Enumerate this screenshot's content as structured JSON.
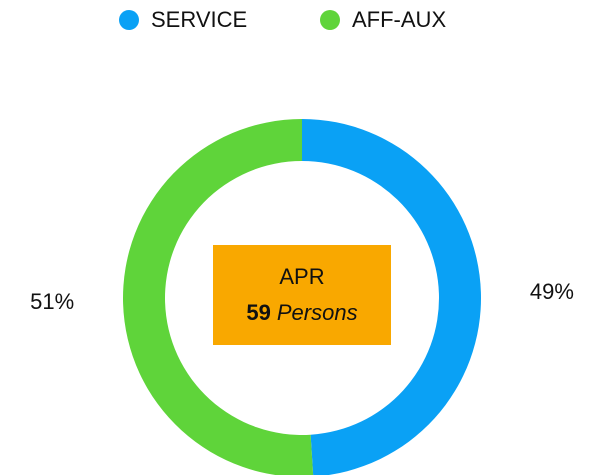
{
  "chart_data": {
    "type": "donut",
    "categories": [
      "SERVICE",
      "AFF-AUX"
    ],
    "values": [
      49,
      51
    ],
    "value_labels": [
      "49%",
      "51%"
    ],
    "colors": [
      "#0aa1f5",
      "#5fd43a"
    ],
    "center": {
      "title": "APR",
      "count": 59,
      "unit": "Persons"
    },
    "center_color": "#f9a800"
  }
}
